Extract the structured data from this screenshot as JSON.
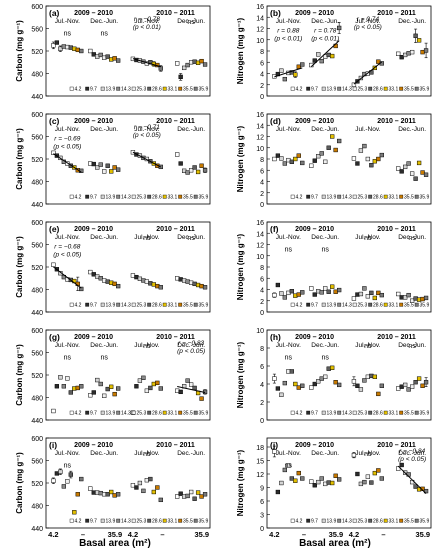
{
  "figure": {
    "xlabel": "Basal area (m²)",
    "x_ticklabels": [
      "4.2",
      "–",
      "35.9",
      "4.2",
      "–",
      "35.9"
    ]
  },
  "legend": {
    "labels": [
      "4.2",
      "9.7",
      "13.9",
      "14.3",
      "25.3",
      "28.6",
      "33.1",
      "35.5",
      "35.9"
    ],
    "colors": [
      "#ffffff",
      "#2b2b2b",
      "#d4d4d4",
      "#8a8a8a",
      "#f0f0f0",
      "#5e5e5e",
      "#e3c000",
      "#c87a00",
      "#7a7a7a"
    ]
  },
  "period_labels": {
    "year1": "2009 – 2010",
    "year2": "2010 – 2011",
    "sub1": "Jul.-Nov.",
    "sub2": "Dec.-Jun."
  },
  "chart_data": [
    {
      "panel": "(a)",
      "type": "scatter",
      "ylabel": "Carbon (mg g⁻¹)",
      "ylim": [
        440,
        600
      ],
      "yticks": [
        440,
        480,
        520,
        560,
        600
      ],
      "values": [
        530,
        535,
        524,
        528,
        527,
        526,
        524,
        522,
        520,
        520,
        514,
        510,
        513,
        508,
        510,
        505,
        507,
        503,
        506,
        504,
        503,
        501,
        498,
        500,
        497,
        495,
        489,
        498,
        474,
        490,
        495,
        500,
        501,
        499,
        502,
        496
      ],
      "errors": [
        6,
        0,
        5,
        0,
        0,
        0,
        0,
        0,
        0,
        0,
        0,
        0,
        0,
        0,
        0,
        0,
        0,
        0,
        0,
        0,
        3,
        2,
        0,
        0,
        4,
        0,
        5,
        0,
        6,
        0,
        0,
        0,
        0,
        0,
        3,
        0
      ],
      "annotations": [
        {
          "text": "ns"
        },
        {
          "text": "ns"
        },
        {
          "text": "r = −0.78 (p < 0.01)"
        },
        {
          "text": "ns"
        }
      ],
      "trend_groups": [
        2
      ]
    },
    {
      "panel": "(b)",
      "type": "scatter",
      "ylabel": "Nitrogen (mg g⁻¹)",
      "ylim": [
        0,
        16
      ],
      "yticks": [
        0,
        2,
        4,
        6,
        8,
        10,
        12,
        14,
        16
      ],
      "values": [
        3.5,
        3.9,
        4.5,
        3.0,
        4.1,
        4.2,
        3.8,
        5.2,
        5.6,
        5.5,
        6.3,
        7.4,
        6.2,
        7.0,
        7.3,
        7.1,
        8.9,
        12.1,
        2.0,
        2.6,
        3.2,
        3.9,
        4.0,
        4.2,
        5.0,
        6.1,
        5.8,
        7.5,
        6.9,
        7.3,
        7.6,
        7.8,
        10.7,
        9.9,
        7.8,
        8.1
      ],
      "errors": [
        0,
        0,
        0,
        0,
        0,
        0,
        0.5,
        0,
        0,
        0,
        0,
        0,
        0,
        0,
        0,
        0,
        0,
        1.0,
        0,
        0,
        0,
        0,
        0,
        0,
        0,
        0,
        0,
        0,
        0,
        0,
        0,
        0,
        1.2,
        0,
        0,
        1.3
      ],
      "annotations": [
        {
          "text": "r = 0.88 (p < 0.01)"
        },
        {
          "text": "r = 0.78 (p < 0.01)"
        },
        {
          "text": "r = 0.74 (p < 0.05)"
        },
        {
          "text": ""
        }
      ],
      "trend_groups": [
        0,
        1,
        2
      ]
    },
    {
      "panel": "(c)",
      "type": "scatter",
      "ylabel": "Carbon (mg g⁻¹)",
      "ylim": [
        440,
        600
      ],
      "yticks": [
        440,
        480,
        520,
        560,
        600
      ],
      "values": [
        531,
        526,
        522,
        515,
        512,
        508,
        505,
        500,
        499,
        512,
        511,
        505,
        510,
        498,
        508,
        498,
        505,
        501,
        532,
        528,
        526,
        522,
        520,
        516,
        512,
        508,
        506,
        528,
        512,
        499,
        496,
        500,
        505,
        497,
        508,
        500
      ],
      "errors": [
        0,
        0,
        0,
        0,
        0,
        0,
        0,
        0,
        0,
        0,
        0,
        0,
        0,
        0,
        0,
        0,
        0,
        0,
        0,
        0,
        0,
        0,
        0,
        0,
        0,
        0,
        0,
        0,
        0,
        0,
        0,
        0,
        0,
        0,
        0,
        4
      ],
      "annotations": [
        {
          "text": "r = −0.69 (p < 0.05)"
        },
        {
          "text": ""
        },
        {
          "text": "r = −0.71 (p < 0.05)"
        },
        {
          "text": ""
        }
      ],
      "trend_groups": [
        0,
        2
      ]
    },
    {
      "panel": "(d)",
      "type": "scatter",
      "ylabel": "Nitrogen (mg g⁻¹)",
      "ylim": [
        0,
        16
      ],
      "yticks": [
        0,
        2,
        4,
        6,
        8,
        10,
        12,
        14,
        16
      ],
      "values": [
        8.0,
        8.6,
        8.1,
        7.2,
        7.8,
        7.5,
        8.0,
        8.6,
        7.3,
        6.8,
        7.7,
        8.5,
        9.0,
        7.5,
        10.0,
        12.0,
        9.6,
        11.2,
        8.1,
        7.2,
        9.5,
        10.3,
        8.0,
        6.9,
        7.6,
        8.0,
        8.7,
        6.3,
        5.8,
        6.6,
        7.2,
        5.4,
        4.5,
        7.3,
        5.6,
        5.2
      ],
      "errors": [
        0,
        0,
        0,
        0,
        0,
        0,
        0,
        0,
        0,
        0,
        0,
        0,
        0,
        0,
        0,
        0,
        0,
        0,
        0,
        0,
        0,
        0,
        0,
        0,
        0,
        0,
        0,
        0,
        0,
        0,
        0,
        0,
        0,
        0,
        0,
        0
      ],
      "annotations": [],
      "trend_groups": []
    },
    {
      "panel": "(e)",
      "type": "scatter",
      "ylabel": "Carbon (mg g⁻¹)",
      "ylim": [
        440,
        600
      ],
      "yticks": [
        440,
        480,
        520,
        560,
        600
      ],
      "values": [
        524,
        516,
        509,
        502,
        498,
        497,
        495,
        490,
        481,
        511,
        507,
        503,
        500,
        496,
        494,
        492,
        490,
        486,
        505,
        502,
        499,
        496,
        494,
        491,
        489,
        486,
        484,
        500,
        498,
        496,
        494,
        492,
        490,
        488,
        486,
        484
      ],
      "errors": [
        0,
        0,
        0,
        0,
        0,
        0,
        0,
        12,
        0,
        0,
        0,
        0,
        0,
        0,
        0,
        0,
        0,
        0,
        0,
        0,
        0,
        0,
        0,
        0,
        0,
        0,
        0,
        0,
        0,
        0,
        0,
        0,
        0,
        0,
        0,
        0
      ],
      "annotations": [
        {
          "text": "r = −0.68 (p < 0.05)"
        },
        {
          "text": ""
        },
        {
          "text": "ns"
        },
        {
          "text": "ns"
        }
      ],
      "trend_groups": [
        0
      ]
    },
    {
      "panel": "(f)",
      "type": "scatter",
      "ylabel": "Nitrogen (mg g⁻¹)",
      "ylim": [
        0,
        16
      ],
      "yticks": [
        0,
        2,
        4,
        6,
        8,
        10,
        12,
        14,
        16
      ],
      "values": [
        3.0,
        4.8,
        3.3,
        2.6,
        3.4,
        3.7,
        2.9,
        3.1,
        3.5,
        4.2,
        3.1,
        3.7,
        3.5,
        4.2,
        3.6,
        4.5,
        3.6,
        3.9,
        2.4,
        3.1,
        3.2,
        4.2,
        2.8,
        3.4,
        2.5,
        3.4,
        3.0,
        3.2,
        2.6,
        2.6,
        3.0,
        2.0,
        2.4,
        2.2,
        2.3,
        2.5
      ],
      "errors": [
        0.4,
        0,
        0,
        0,
        0,
        0,
        0,
        0,
        0,
        0,
        0,
        0,
        0,
        0,
        0,
        0,
        0,
        0,
        0,
        0,
        0,
        0,
        0,
        0,
        0,
        0,
        0,
        0,
        0,
        0,
        0,
        0,
        0,
        0,
        0,
        0
      ],
      "annotations": [
        {
          "text": "ns"
        },
        {
          "text": "ns"
        },
        {
          "text": "ns"
        },
        {
          "text": "ns"
        }
      ],
      "trend_groups": []
    },
    {
      "panel": "(g)",
      "type": "scatter",
      "ylabel": "Carbon (mg g⁻¹)",
      "ylim": [
        440,
        600
      ],
      "yticks": [
        440,
        480,
        520,
        560,
        600
      ],
      "values": [
        456,
        500,
        516,
        500,
        514,
        489,
        496,
        497,
        500,
        484,
        489,
        511,
        504,
        483,
        495,
        499,
        486,
        496,
        453,
        500,
        510,
        515,
        492,
        497,
        504,
        506,
        496,
        492,
        490,
        500,
        510,
        503,
        497,
        488,
        478,
        490
      ],
      "errors": [
        0,
        0,
        0,
        0,
        0,
        0,
        0,
        0,
        0,
        0,
        0,
        0,
        0,
        0,
        0,
        0,
        0,
        0,
        0,
        0,
        0,
        0,
        0,
        0,
        0,
        0,
        0,
        0,
        0,
        0,
        0,
        0,
        0,
        0,
        0,
        4
      ],
      "annotations": [
        {
          "text": "ns"
        },
        {
          "text": "ns"
        },
        {
          "text": "ns"
        },
        {
          "text": "r = −0.83 (p < 0.05)"
        }
      ],
      "trend_groups": [
        3
      ]
    },
    {
      "panel": "(h)",
      "type": "scatter",
      "ylabel": "Nitrogen (mg g⁻¹)",
      "ylim": [
        0,
        10
      ],
      "yticks": [
        0,
        2,
        4,
        6,
        8,
        10
      ],
      "values": [
        4.6,
        3.5,
        2.8,
        4.1,
        5.4,
        5.4,
        4.0,
        3.6,
        3.8,
        3.6,
        4.0,
        4.3,
        4.6,
        4.8,
        5.7,
        5.8,
        4.2,
        3.9,
        4.3,
        3.8,
        3.4,
        4.4,
        4.8,
        4.9,
        4.8,
        2.9,
        3.8,
        3.5,
        3.7,
        3.9,
        3.4,
        3.7,
        4.2,
        4.6,
        3.8,
        4.2
      ],
      "errors": [
        0.5,
        0,
        0,
        0,
        0,
        0,
        0,
        0,
        0,
        0,
        0,
        0,
        0,
        0,
        0,
        0,
        0,
        0,
        0.5,
        0,
        0,
        0,
        0,
        0,
        0,
        0,
        0,
        0,
        0,
        0,
        0,
        0,
        0,
        0,
        0,
        0.5
      ],
      "annotations": [
        {
          "text": "ns"
        },
        {
          "text": "ns"
        },
        {
          "text": "ns"
        },
        {
          "text": "ns"
        }
      ],
      "trend_groups": []
    },
    {
      "panel": "(i)",
      "type": "scatter",
      "ylabel": "Carbon (mg g⁻¹)",
      "ylim": [
        440,
        600
      ],
      "yticks": [
        440,
        480,
        520,
        560,
        600
      ],
      "values": [
        524,
        537,
        540,
        514,
        523,
        535,
        468,
        500,
        527,
        510,
        503,
        503,
        502,
        500,
        500,
        504,
        498,
        500,
        516,
        512,
        520,
        506,
        525,
        527,
        504,
        512,
        490,
        496,
        501,
        496,
        497,
        504,
        492,
        503,
        496,
        500
      ],
      "errors": [
        5,
        0,
        5,
        0,
        0,
        6,
        0,
        0,
        0,
        0,
        0,
        0,
        0,
        0,
        0,
        0,
        0,
        0,
        0,
        0,
        0,
        0,
        0,
        0,
        0,
        0,
        0,
        0,
        0,
        0,
        0,
        0,
        0,
        0,
        0,
        0
      ],
      "annotations": [
        {
          "text": "ns"
        },
        {
          "text": ""
        },
        {
          "text": "ns"
        },
        {
          "text": ""
        }
      ],
      "trend_groups": []
    },
    {
      "panel": "(j)",
      "type": "scatter",
      "ylabel": "Nitrogen (mg g⁻¹)",
      "ylim": [
        0,
        20
      ],
      "yticks": [
        0,
        3,
        6,
        9,
        12,
        15,
        18
      ],
      "values": [
        17.0,
        8.0,
        10.0,
        12.9,
        13.9,
        11.0,
        10.5,
        12.2,
        11.0,
        10.3,
        9.5,
        10.2,
        11.0,
        9.8,
        10.1,
        10.0,
        11.6,
        10.8,
        16.2,
        12.0,
        9.8,
        10.2,
        11.4,
        10.1,
        12.2,
        12.8,
        11.0,
        13.2,
        14.0,
        12.3,
        11.9,
        10.2,
        9.2,
        8.6,
        8.7,
        8.2
      ],
      "errors": [
        1.2,
        0,
        0,
        0,
        0,
        0,
        0,
        0,
        0,
        0,
        0,
        0,
        0,
        0,
        0,
        0,
        0,
        0,
        0.6,
        0,
        0,
        0,
        0,
        0,
        0,
        0,
        0,
        0,
        0,
        0,
        0,
        0,
        0,
        0,
        0,
        0
      ],
      "annotations": [
        {
          "text": "ns"
        },
        {
          "text": ""
        },
        {
          "text": "ns"
        },
        {
          "text": "r = −0.84 (p < 0.05)"
        }
      ],
      "trend_groups": [
        3
      ]
    }
  ]
}
